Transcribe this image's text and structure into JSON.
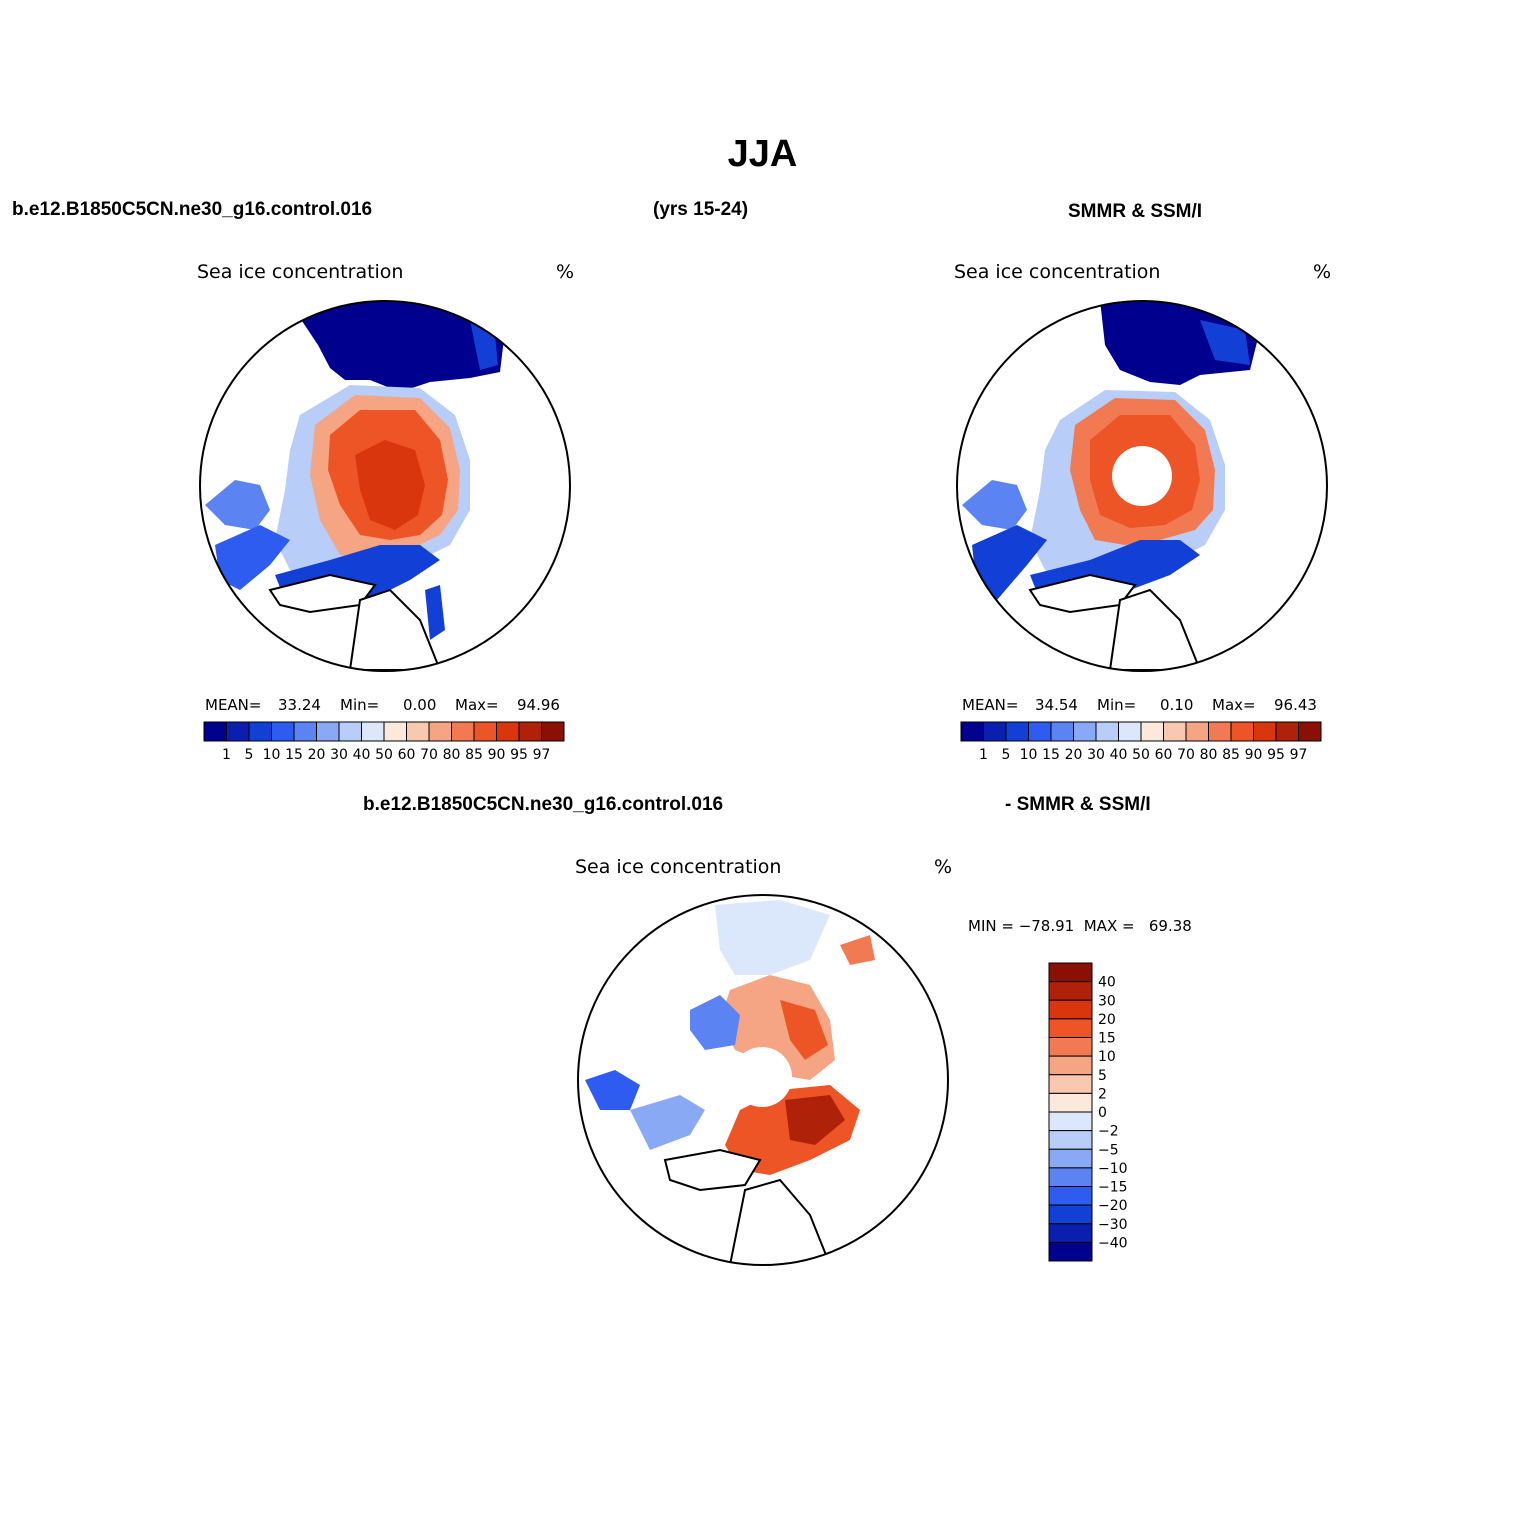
{
  "figure": {
    "title": "JJA",
    "top_left_case": "b.e12.B1850C5CN.ne30_g16.control.016",
    "top_years": "(yrs 15-24)",
    "top_right_obs": "SMMR & SSM/I",
    "bottom_case": "b.e12.B1850C5CN.ne30_g16.control.016",
    "bottom_obs": "- SMMR & SSM/I"
  },
  "colors": {
    "conc_scale": [
      "#00008f",
      "#0a1fb0",
      "#1240d6",
      "#2e5bf0",
      "#5b84f2",
      "#8aa9f5",
      "#b8cdf8",
      "#dbe7fb",
      "#fde8dc",
      "#f9c8b0",
      "#f5a583",
      "#f27a52",
      "#ee5526",
      "#d9360d",
      "#b0210a",
      "#8a0f05"
    ],
    "diff_scale": [
      "#00008f",
      "#0a1fb0",
      "#1240d6",
      "#2e5bf0",
      "#5b84f2",
      "#8aa9f5",
      "#b8cdf8",
      "#dbe7fb",
      "#fde8dc",
      "#f9c8b0",
      "#f5a583",
      "#f27a52",
      "#ee5526",
      "#d9360d",
      "#b0210a",
      "#8a0f05"
    ],
    "land": "#ffffff",
    "coast": "#000000"
  },
  "chart_data": [
    {
      "type": "heatmap",
      "projection": "north-polar-stereographic",
      "title": "Sea ice concentration",
      "units": "%",
      "stats": {
        "mean_label": "MEAN=",
        "mean": "33.24",
        "min_label": "Min=",
        "min": "0.00",
        "max_label": "Max=",
        "max": "94.96"
      },
      "colorbar_ticks": [
        "1",
        "5",
        "10",
        "15",
        "20",
        "30",
        "40",
        "50",
        "60",
        "70",
        "80",
        "85",
        "90",
        "95",
        "97"
      ],
      "colorbar_orientation": "horizontal",
      "pole_hole": false
    },
    {
      "type": "heatmap",
      "projection": "north-polar-stereographic",
      "title": "Sea ice concentration",
      "units": "%",
      "stats": {
        "mean_label": "MEAN=",
        "mean": "34.54",
        "min_label": "Min=",
        "min": "0.10",
        "max_label": "Max=",
        "max": "96.43"
      },
      "colorbar_ticks": [
        "1",
        "5",
        "10",
        "15",
        "20",
        "30",
        "40",
        "50",
        "60",
        "70",
        "80",
        "85",
        "90",
        "95",
        "97"
      ],
      "colorbar_orientation": "horizontal",
      "pole_hole": true
    },
    {
      "type": "heatmap",
      "projection": "north-polar-stereographic",
      "title": "Sea ice concentration",
      "units": "%",
      "minmax_text": "MIN = −78.91  MAX =   69.38",
      "colorbar_ticks": [
        "40",
        "30",
        "20",
        "15",
        "10",
        "5",
        "2",
        "0",
        "−2",
        "−5",
        "−10",
        "−15",
        "−20",
        "−30",
        "−40"
      ],
      "colorbar_orientation": "vertical",
      "pole_hole": true
    }
  ]
}
